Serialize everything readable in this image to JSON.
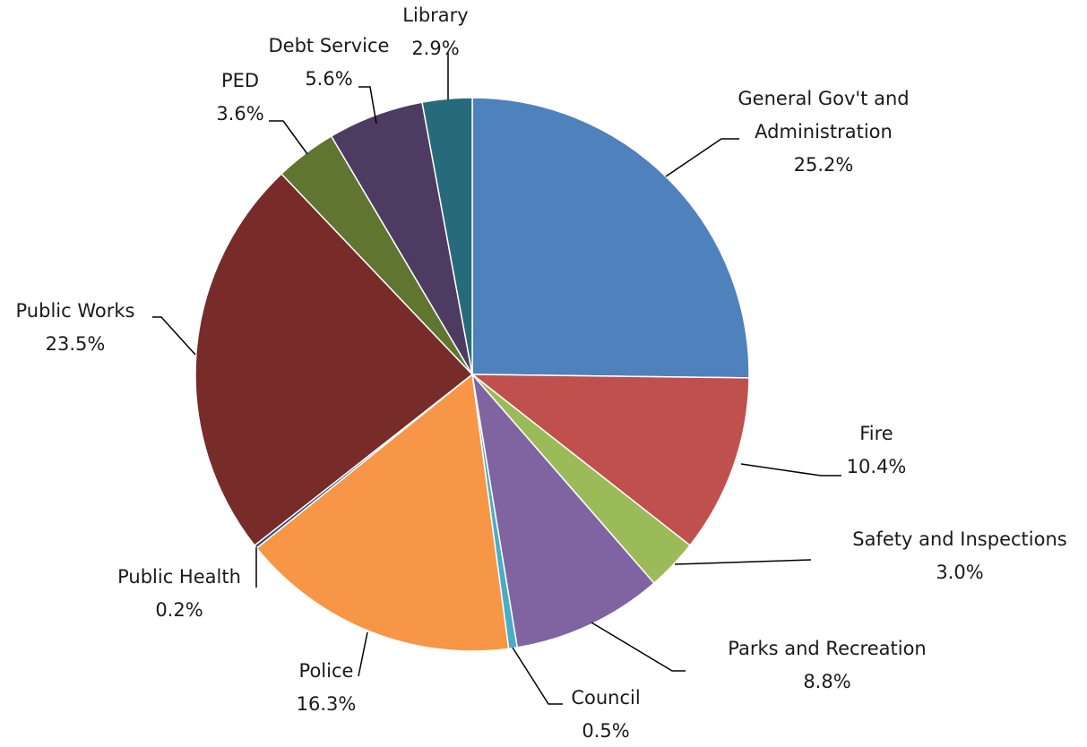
{
  "chart_data": {
    "type": "pie",
    "title": "",
    "start_angle_deg": 0,
    "direction": "clockwise",
    "slices": [
      {
        "label": "General Gov't and Administration",
        "label_lines": [
          "General Gov't and",
          "Administration"
        ],
        "value": 25.2,
        "value_text": "25.2%",
        "color": "#4F81BD"
      },
      {
        "label": "Fire",
        "label_lines": [
          "Fire"
        ],
        "value": 10.4,
        "value_text": "10.4%",
        "color": "#C0504D"
      },
      {
        "label": "Safety and Inspections",
        "label_lines": [
          "Safety and Inspections"
        ],
        "value": 3.0,
        "value_text": "3.0%",
        "color": "#9BBB59"
      },
      {
        "label": "Parks and Recreation",
        "label_lines": [
          "Parks and Recreation"
        ],
        "value": 8.8,
        "value_text": "8.8%",
        "color": "#8064A2"
      },
      {
        "label": "Council",
        "label_lines": [
          "Council"
        ],
        "value": 0.5,
        "value_text": "0.5%",
        "color": "#4BACC6"
      },
      {
        "label": "Police",
        "label_lines": [
          "Police"
        ],
        "value": 16.3,
        "value_text": "16.3%",
        "color": "#F79646"
      },
      {
        "label": "Public Health",
        "label_lines": [
          "Public Health"
        ],
        "value": 0.2,
        "value_text": "0.2%",
        "color": "#2C4D75"
      },
      {
        "label": "Public Works",
        "label_lines": [
          "Public Works"
        ],
        "value": 23.5,
        "value_text": "23.5%",
        "color": "#772C2A"
      },
      {
        "label": "PED",
        "label_lines": [
          "PED"
        ],
        "value": 3.6,
        "value_text": "3.6%",
        "color": "#5F7530"
      },
      {
        "label": "Debt Service",
        "label_lines": [
          "Debt Service"
        ],
        "value": 5.6,
        "value_text": "5.6%",
        "color": "#4D3B62"
      },
      {
        "label": "Library",
        "label_lines": [
          "Library"
        ],
        "value": 2.9,
        "value_text": "2.9%",
        "color": "#276A7C"
      }
    ]
  }
}
